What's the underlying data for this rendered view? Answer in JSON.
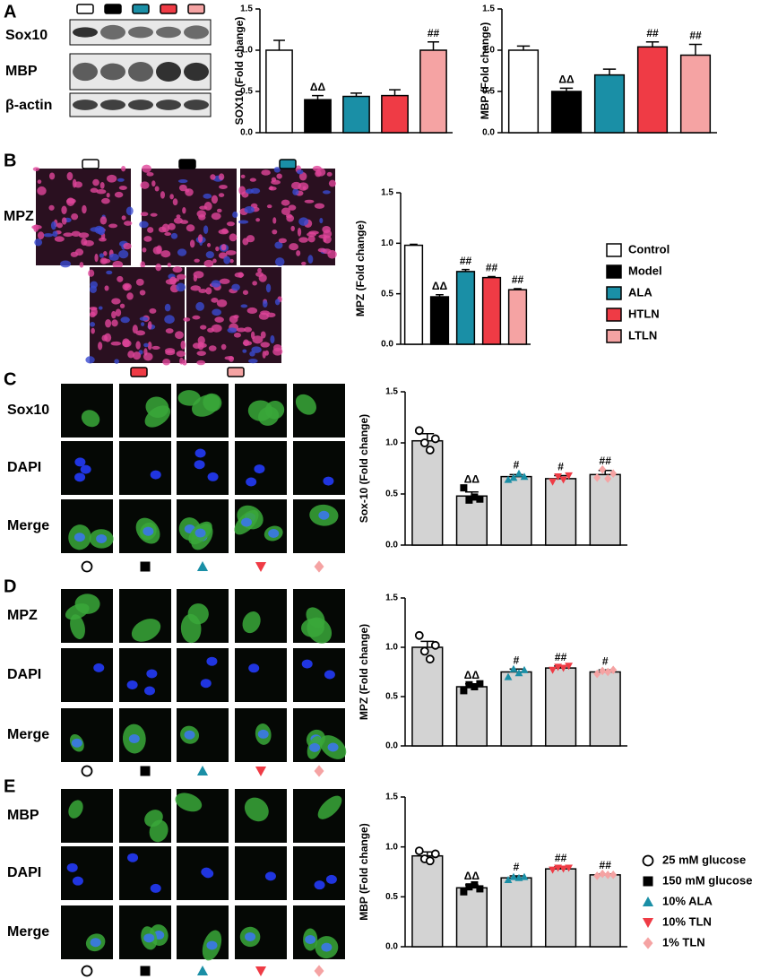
{
  "figure": {
    "panel_labels": [
      "A",
      "B",
      "C",
      "D",
      "E"
    ],
    "blot_labels": [
      "Sox10",
      "MBP",
      "β-actin"
    ],
    "image_labels": [
      [
        "MPZ"
      ],
      [
        "Sox10",
        "DAPI",
        "Merge"
      ],
      [
        "MPZ",
        "DAPI",
        "Merge"
      ],
      [
        "MBP",
        "DAPI",
        "Merge"
      ]
    ]
  },
  "chart_data": [
    {
      "type": "bar",
      "ylabel": "SOX10 (Fold change)",
      "values": [
        1.0,
        0.4,
        0.44,
        0.45,
        1.0
      ],
      "errors": [
        0.12,
        0.05,
        0.04,
        0.07,
        0.1
      ],
      "colors": [
        "#ffffff",
        "#000000",
        "#1a8fa6",
        "#ef3b45",
        "#f5a3a3"
      ],
      "annotations": [
        null,
        "ΔΔ",
        null,
        null,
        "##"
      ],
      "ylim": [
        0,
        1.5
      ],
      "yticks": [
        {
          "value": 0,
          "label": "0.0"
        },
        0.5,
        {
          "value": 1,
          "label": "1.0"
        },
        1.5
      ]
    },
    {
      "type": "bar",
      "ylabel": "MBP (Fold change)",
      "values": [
        1.0,
        0.5,
        0.7,
        1.04,
        0.94
      ],
      "errors": [
        0.05,
        0.04,
        0.07,
        0.06,
        0.13
      ],
      "colors": [
        "#ffffff",
        "#000000",
        "#1a8fa6",
        "#ef3b45",
        "#f5a3a3"
      ],
      "annotations": [
        null,
        "ΔΔ",
        null,
        "##",
        "##"
      ],
      "ylim": [
        0,
        1.5
      ],
      "yticks": [
        {
          "value": 0,
          "label": "0.0"
        },
        0.5,
        {
          "value": 1,
          "label": "1.0"
        },
        1.5
      ]
    },
    {
      "type": "bar",
      "ylabel": "MPZ (Fold change)",
      "categories": [
        "Control",
        "Model",
        "ALA",
        "HTLN",
        "LTLN"
      ],
      "legend": "right",
      "values": [
        0.98,
        0.47,
        0.72,
        0.66,
        0.54
      ],
      "errors": [
        0.01,
        0.02,
        0.02,
        0.01,
        0.01
      ],
      "colors": [
        "#ffffff",
        "#000000",
        "#1a8fa6",
        "#ef3b45",
        "#f5a3a3"
      ],
      "annotations": [
        null,
        "ΔΔ",
        "##",
        "##",
        "##"
      ],
      "ylim": [
        0,
        1.5
      ],
      "yticks": [
        {
          "value": 0,
          "label": "0.0"
        },
        0.5,
        {
          "value": 1,
          "label": "1.0"
        },
        1.5
      ]
    },
    {
      "type": "bar",
      "ylabel": "Sox-10 (Fold change)",
      "values": [
        1.02,
        0.48,
        0.67,
        0.65,
        0.69
      ],
      "errors": [
        0.07,
        0.04,
        0.02,
        0.03,
        0.04
      ],
      "points": [
        [
          1.12,
          1.0,
          0.93,
          1.04
        ],
        [
          0.56,
          0.44,
          0.47,
          0.45
        ],
        [
          0.64,
          0.66,
          0.7,
          0.67
        ],
        [
          0.62,
          0.67,
          0.64,
          0.68
        ],
        [
          0.66,
          0.74,
          0.65,
          0.7
        ]
      ],
      "colors": [
        "#d3d3d3",
        "#d3d3d3",
        "#d3d3d3",
        "#d3d3d3",
        "#d3d3d3"
      ],
      "markers": [
        "circle",
        "square",
        "triangle-up",
        "triangle-down",
        "diamond"
      ],
      "point_colors": [
        "#000000",
        "#000000",
        "#1a8fa6",
        "#ef3b45",
        "#f5a3a3"
      ],
      "annotations": [
        null,
        "ΔΔ",
        "#",
        "#",
        "##"
      ],
      "ylim": [
        0,
        1.5
      ],
      "yticks": [
        {
          "value": 0,
          "label": "0.0"
        },
        0.5,
        {
          "value": 1,
          "label": "1.0"
        },
        1.5
      ]
    },
    {
      "type": "bar",
      "ylabel": "MPZ (Fold change)",
      "values": [
        1.0,
        0.6,
        0.75,
        0.79,
        0.75
      ],
      "errors": [
        0.06,
        0.03,
        0.03,
        0.02,
        0.02
      ],
      "points": [
        [
          1.12,
          0.96,
          0.88,
          1.02
        ],
        [
          0.56,
          0.62,
          0.6,
          0.63
        ],
        [
          0.7,
          0.78,
          0.74,
          0.77
        ],
        [
          0.77,
          0.8,
          0.79,
          0.81
        ],
        [
          0.73,
          0.76,
          0.75,
          0.77
        ]
      ],
      "colors": [
        "#d3d3d3",
        "#d3d3d3",
        "#d3d3d3",
        "#d3d3d3",
        "#d3d3d3"
      ],
      "markers": [
        "circle",
        "square",
        "triangle-up",
        "triangle-down",
        "diamond"
      ],
      "point_colors": [
        "#000000",
        "#000000",
        "#1a8fa6",
        "#ef3b45",
        "#f5a3a3"
      ],
      "annotations": [
        null,
        "ΔΔ",
        "#",
        "##",
        "#"
      ],
      "ylim": [
        0,
        1.5
      ],
      "yticks": [
        {
          "value": 0,
          "label": "0.0"
        },
        0.5,
        {
          "value": 1,
          "label": "1.0"
        },
        1.5
      ]
    },
    {
      "type": "bar",
      "ylabel": "MBP (Fold change)",
      "categories": [
        "25 mM glucose",
        "150 mM glucose",
        "10% ALA",
        "10% TLN",
        "1% TLN"
      ],
      "legend": "right",
      "values": [
        0.91,
        0.59,
        0.69,
        0.78,
        0.72
      ],
      "errors": [
        0.04,
        0.03,
        0.02,
        0.02,
        0.01
      ],
      "points": [
        [
          0.96,
          0.88,
          0.86,
          0.93
        ],
        [
          0.55,
          0.6,
          0.62,
          0.58
        ],
        [
          0.67,
          0.7,
          0.69,
          0.7
        ],
        [
          0.77,
          0.79,
          0.78,
          0.79
        ],
        [
          0.71,
          0.73,
          0.72,
          0.72
        ]
      ],
      "colors": [
        "#d3d3d3",
        "#d3d3d3",
        "#d3d3d3",
        "#d3d3d3",
        "#d3d3d3"
      ],
      "markers": [
        "circle",
        "square",
        "triangle-up",
        "triangle-down",
        "diamond"
      ],
      "point_colors": [
        "#000000",
        "#000000",
        "#1a8fa6",
        "#ef3b45",
        "#f5a3a3"
      ],
      "annotations": [
        null,
        "ΔΔ",
        "#",
        "##",
        "##"
      ],
      "ylim": [
        0,
        1.5
      ],
      "yticks": [
        {
          "value": 0,
          "label": "0.0"
        },
        0.5,
        {
          "value": 1,
          "label": "1.0"
        },
        1.5
      ]
    }
  ]
}
